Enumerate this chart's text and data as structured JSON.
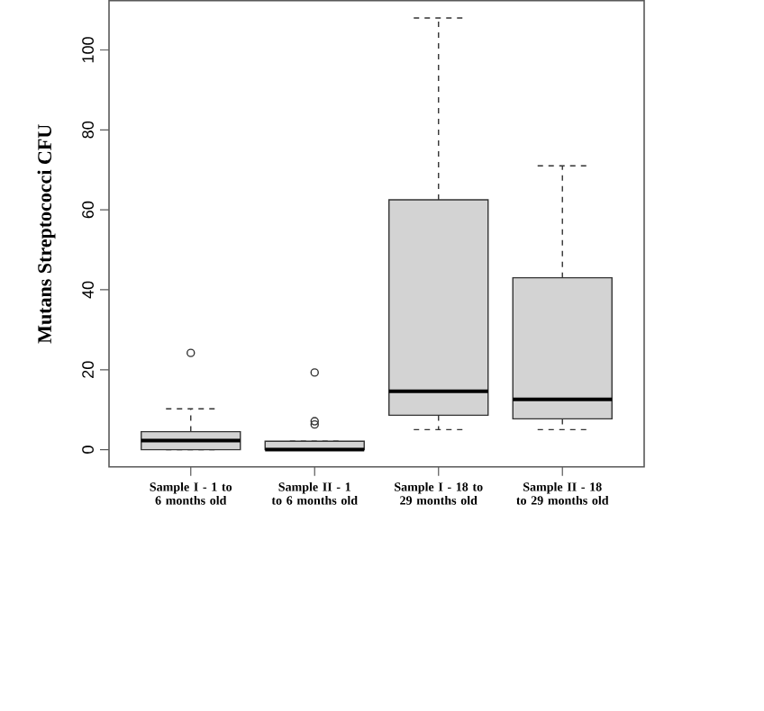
{
  "chart_data": {
    "type": "box",
    "ylabel": "Mutans Streptococci CFU",
    "categories": [
      "Sample I - 1 to 6 months old",
      "Sample II - 1 to 6 months old",
      "Sample I - 18 to 29 months old",
      "Sample II - 18 to 29 months old"
    ],
    "boxes": [
      {
        "low": 0,
        "q1": 0,
        "median": 2.3,
        "q3": 4.5,
        "high": 10.2,
        "outliers": [
          24.2
        ]
      },
      {
        "low": 0,
        "q1": 0,
        "median": 0,
        "q3": 2.1,
        "high": 2.1,
        "outliers": [
          6.3,
          7.1,
          19.3
        ]
      },
      {
        "low": 5,
        "q1": 8.6,
        "median": 14.6,
        "q3": 62.5,
        "high": 108
      },
      {
        "low": 5,
        "q1": 7.7,
        "median": 12.6,
        "q3": 43,
        "high": 71
      }
    ],
    "color": "#d3d3d3",
    "ylim": [
      -4.32,
      112.32
    ],
    "yticks": [
      0,
      20,
      40,
      60,
      80,
      100
    ]
  }
}
